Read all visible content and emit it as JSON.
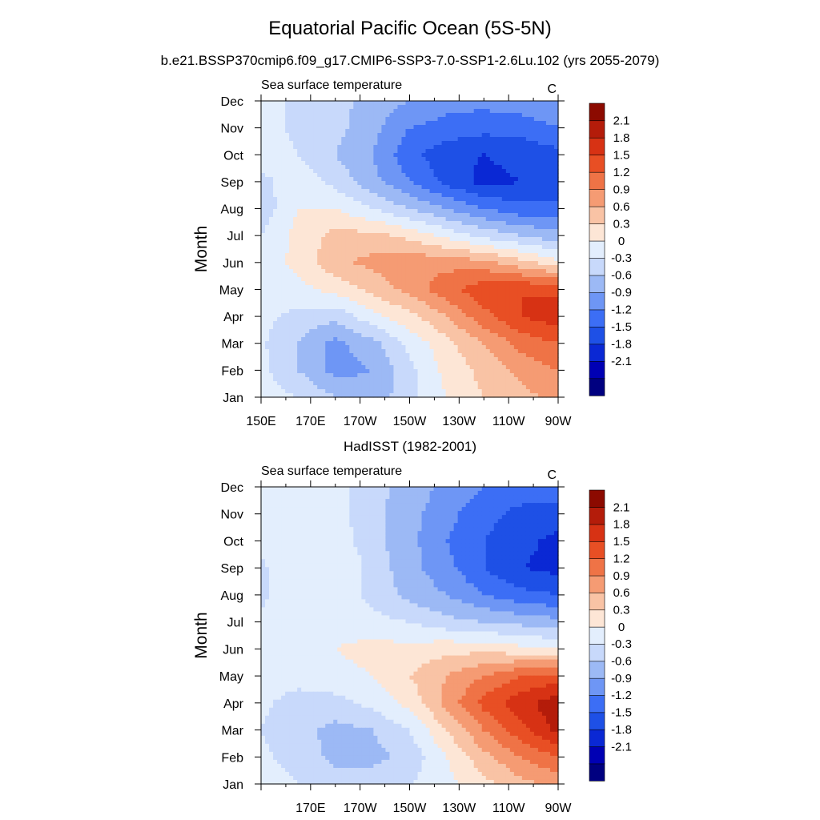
{
  "title": "Equatorial Pacific Ocean (5S-5N)",
  "subtitle": "b.e21.BSSP370cmip6.f09_g17.CMIP6-SSP3-7.0-SSP1-2.6Lu.102 (yrs 2055-2079)",
  "second_title": "HadISST (1982-2001)",
  "chart_data": [
    {
      "type": "heatmap",
      "left_label": "Sea surface temperature",
      "units": "C",
      "ylabel": "Month",
      "xlabel": "",
      "y_ticks": [
        "Jan",
        "Feb",
        "Mar",
        "Apr",
        "May",
        "Jun",
        "Jul",
        "Aug",
        "Sep",
        "Oct",
        "Nov",
        "Dec"
      ],
      "x_ticks": [
        "150E",
        "170E",
        "170W",
        "150W",
        "130W",
        "110W",
        "90W"
      ],
      "x_tick_lon": [
        150,
        170,
        190,
        210,
        230,
        250,
        270
      ],
      "xlim": [
        150,
        270
      ],
      "colorbar_labels": [
        "2.1",
        "1.8",
        "1.5",
        "1.2",
        "0.9",
        "0.6",
        "0.3",
        "0",
        "-0.3",
        "-0.6",
        "-0.9",
        "-1.2",
        "-1.5",
        "-1.8",
        "-2.1"
      ],
      "grid_lon": [
        150,
        165,
        180,
        195,
        210,
        225,
        240,
        255,
        270
      ],
      "grid_values": [
        [
          0.15,
          0.0,
          -0.3,
          -0.5,
          -0.1,
          0.3,
          0.6,
          0.8,
          1.0
        ],
        [
          0.1,
          -0.3,
          -0.7,
          -0.6,
          -0.1,
          0.4,
          0.7,
          1.0,
          1.2
        ],
        [
          0.05,
          -0.3,
          -0.7,
          -0.4,
          0.1,
          0.5,
          0.9,
          1.3,
          1.5
        ],
        [
          0.1,
          -0.1,
          -0.2,
          0.2,
          0.5,
          0.9,
          1.4,
          1.8,
          2.0
        ],
        [
          0.1,
          0.2,
          0.4,
          0.7,
          1.0,
          1.4,
          1.7,
          1.8,
          1.7
        ],
        [
          0.1,
          0.4,
          0.8,
          1.0,
          1.1,
          1.1,
          1.0,
          0.7,
          0.4
        ],
        [
          0.0,
          0.4,
          0.7,
          0.7,
          0.5,
          0.2,
          -0.1,
          -0.3,
          -0.5
        ],
        [
          -0.2,
          0.3,
          0.3,
          0.0,
          -0.3,
          -0.6,
          -0.9,
          -1.1,
          -1.1
        ],
        [
          -0.1,
          0.2,
          -0.1,
          -0.5,
          -0.9,
          -1.3,
          -1.6,
          -1.5,
          -1.5
        ],
        [
          0.2,
          0.0,
          -0.3,
          -0.6,
          -1.1,
          -1.4,
          -1.5,
          -1.4,
          -1.3
        ],
        [
          0.2,
          -0.1,
          -0.2,
          -0.5,
          -0.9,
          -1.0,
          -1.1,
          -1.1,
          -0.9
        ],
        [
          0.2,
          -0.1,
          -0.2,
          -0.4,
          -0.6,
          -0.8,
          -0.8,
          -0.7,
          -0.6
        ]
      ]
    },
    {
      "type": "heatmap",
      "left_label": "Sea surface temperature",
      "units": "C",
      "ylabel": "Month",
      "xlabel": "",
      "y_ticks": [
        "Jan",
        "Feb",
        "Mar",
        "Apr",
        "May",
        "Jun",
        "Jul",
        "Aug",
        "Sep",
        "Oct",
        "Nov",
        "Dec"
      ],
      "x_ticks": [
        "170E",
        "170W",
        "150W",
        "130W",
        "110W",
        "90W"
      ],
      "x_tick_lon": [
        170,
        190,
        210,
        230,
        250,
        270
      ],
      "xlim": [
        150,
        270
      ],
      "colorbar_labels": [
        "2.1",
        "1.8",
        "1.5",
        "1.2",
        "0.9",
        "0.6",
        "0.3",
        "0",
        "-0.3",
        "-0.6",
        "-0.9",
        "-1.2",
        "-1.5",
        "-1.8",
        "-2.1"
      ],
      "grid_lon": [
        150,
        165,
        180,
        195,
        210,
        225,
        240,
        255,
        270
      ],
      "grid_values": [
        [
          0.15,
          0.0,
          -0.1,
          -0.1,
          0.0,
          0.2,
          0.5,
          0.8,
          1.0
        ],
        [
          0.05,
          -0.1,
          -0.4,
          -0.4,
          -0.2,
          0.3,
          0.8,
          1.2,
          1.5
        ],
        [
          0.0,
          -0.2,
          -0.4,
          -0.3,
          0.0,
          0.6,
          1.2,
          1.7,
          2.2
        ],
        [
          0.05,
          -0.1,
          -0.1,
          0.1,
          0.4,
          1.0,
          1.6,
          2.0,
          2.3
        ],
        [
          0.1,
          0.1,
          0.2,
          0.3,
          0.6,
          0.9,
          1.2,
          1.5,
          1.6
        ],
        [
          0.1,
          0.2,
          0.3,
          0.4,
          0.4,
          0.5,
          0.5,
          0.4,
          0.3
        ],
        [
          0.05,
          0.2,
          0.2,
          0.1,
          0.0,
          -0.2,
          -0.3,
          -0.4,
          -0.5
        ],
        [
          -0.05,
          0.2,
          0.2,
          -0.1,
          -0.4,
          -0.6,
          -0.9,
          -1.1,
          -1.2
        ],
        [
          -0.05,
          0.2,
          0.3,
          -0.1,
          -0.5,
          -0.8,
          -1.2,
          -1.5,
          -1.6
        ],
        [
          0.1,
          0.2,
          0.2,
          -0.2,
          -0.5,
          -0.9,
          -1.2,
          -1.4,
          -1.6
        ],
        [
          0.1,
          0.2,
          0.1,
          -0.2,
          -0.5,
          -0.8,
          -1.1,
          -1.3,
          -1.3
        ],
        [
          0.1,
          0.2,
          0.1,
          -0.2,
          -0.4,
          -0.7,
          -0.9,
          -1.0,
          -1.0
        ]
      ]
    }
  ],
  "colors": {
    "levels": [
      "#000080",
      "#0000b4",
      "#0a28d4",
      "#1e50e6",
      "#3c6ef5",
      "#6e96f5",
      "#9cb9f5",
      "#c8d9fb",
      "#e3eefd",
      "#fde6d6",
      "#f9c3a5",
      "#f59b73",
      "#ef7346",
      "#e84f24",
      "#d73214",
      "#b41c0a",
      "#8c0a00"
    ]
  }
}
